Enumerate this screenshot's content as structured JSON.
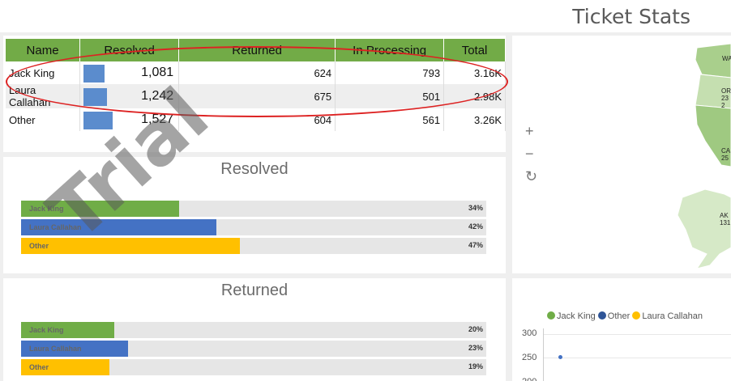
{
  "header": {
    "title": "Ticket Stats"
  },
  "table": {
    "columns": [
      "Name",
      "Resolved",
      "Returned",
      "In Processing",
      "Total"
    ],
    "rows": [
      {
        "name": "Jack King",
        "resolved": "1,081",
        "resolved_fraction": 0.71,
        "returned": "624",
        "in_processing": "793",
        "total": "3.16K"
      },
      {
        "name": "Laura Callahan",
        "resolved": "1,242",
        "resolved_fraction": 0.81,
        "returned": "675",
        "in_processing": "501",
        "total": "2.98K"
      },
      {
        "name": "Other",
        "resolved": "1,527",
        "resolved_fraction": 1.0,
        "returned": "604",
        "in_processing": "561",
        "total": "3.26K"
      }
    ]
  },
  "resolved_panel": {
    "title": "Resolved",
    "bars": [
      {
        "label": "Jack King",
        "pct": "34%",
        "fraction": 0.34,
        "color": "#70ad47"
      },
      {
        "label": "Laura Callahan",
        "pct": "42%",
        "fraction": 0.42,
        "color": "#4472c4"
      },
      {
        "label": "Other",
        "pct": "47%",
        "fraction": 0.47,
        "color": "#ffc000"
      }
    ]
  },
  "returned_panel": {
    "title": "Returned",
    "bars": [
      {
        "label": "Jack King",
        "pct": "20%",
        "fraction": 0.2,
        "color": "#70ad47"
      },
      {
        "label": "Laura Callahan",
        "pct": "23%",
        "fraction": 0.23,
        "color": "#4472c4"
      },
      {
        "label": "Other",
        "pct": "19%",
        "fraction": 0.19,
        "color": "#ffc000"
      }
    ]
  },
  "map": {
    "zoom_in": "+",
    "zoom_out": "−",
    "reset": "↻",
    "region_labels": [
      "WA",
      "OR 232",
      "CA 25",
      "AK 131"
    ],
    "watermark": "Trial"
  },
  "scatter": {
    "legend": [
      {
        "name": "Jack King",
        "color": "#70ad47"
      },
      {
        "name": "Other",
        "color": "#2f5597"
      },
      {
        "name": "Laura Callahan",
        "color": "#ffc000"
      }
    ],
    "y_ticks": [
      "300",
      "250",
      "200"
    ],
    "points": [
      {
        "series": "Other",
        "y": 250
      }
    ]
  }
}
